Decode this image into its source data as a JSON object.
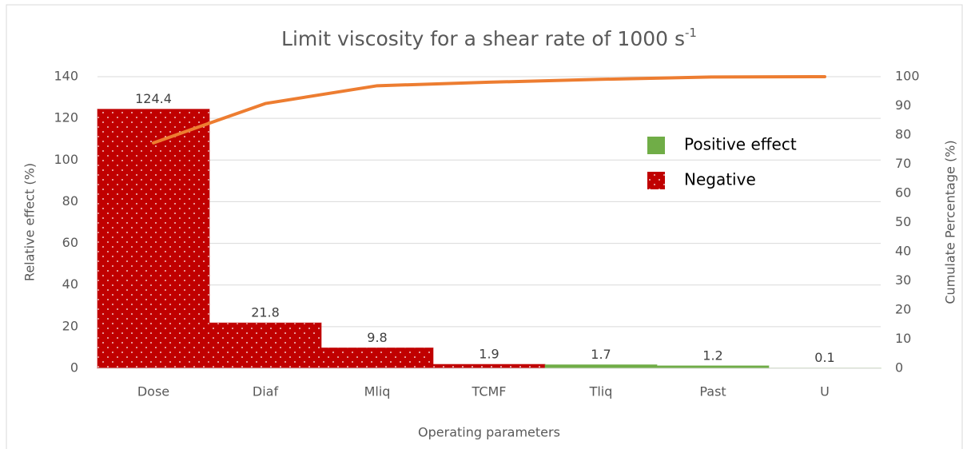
{
  "chart_data": {
    "type": "pareto",
    "title": "Limit viscosity for a shear rate of 1000 s",
    "title_superscript": "-1",
    "x_label": "Operating parameters",
    "y_label": "Relative effect (%)",
    "y2_label": "Cumulate Percentage (%)",
    "categories": [
      "Dose",
      "Diaf",
      "Mliq",
      "TCMF",
      "Tliq",
      "Past",
      "U"
    ],
    "series": [
      {
        "name": "Positive effect",
        "color": "#70ad47",
        "values": [
          null,
          null,
          null,
          null,
          1.7,
          1.2,
          0.1
        ]
      },
      {
        "name": "Negative",
        "color": "#c00000",
        "pattern": "dots",
        "values": [
          124.4,
          21.8,
          9.8,
          1.9,
          null,
          null,
          null
        ]
      }
    ],
    "cumulative": {
      "color": "#ed7d31",
      "axis": "y2",
      "values": [
        77.3,
        90.8,
        96.9,
        98.1,
        99.1,
        99.9,
        100
      ]
    },
    "ylim": [
      0,
      140
    ],
    "yticks": [
      0,
      20,
      40,
      60,
      80,
      100,
      120,
      140
    ],
    "y2lim": [
      0,
      100
    ],
    "y2ticks": [
      0,
      10,
      20,
      30,
      40,
      50,
      60,
      70,
      80,
      90,
      100
    ],
    "grid": true
  }
}
